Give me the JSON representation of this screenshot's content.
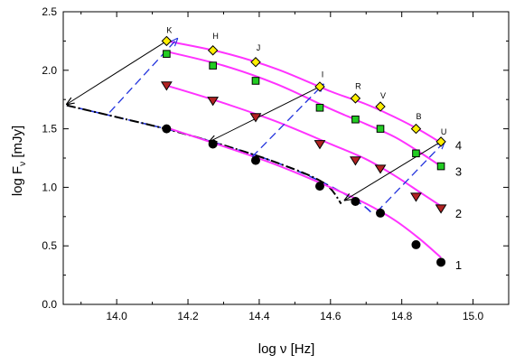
{
  "chart_data": {
    "type": "scatter",
    "title": "",
    "xlabel": "log ν [Hz]",
    "ylabel": "log F",
    "ylabel_sub": "ν",
    "ylabel_unit": " [mJy]",
    "xlim": [
      13.85,
      15.1
    ],
    "ylim": [
      0.0,
      2.5
    ],
    "xticks": [
      14.0,
      14.2,
      14.4,
      14.6,
      14.8,
      15.0
    ],
    "xtick_labels": [
      "14.0",
      "14.2",
      "14.4",
      "14.6",
      "14.8",
      "15.0"
    ],
    "yticks": [
      0.0,
      0.5,
      1.0,
      1.5,
      2.0,
      2.5
    ],
    "ytick_labels": [
      "0.0",
      "0.5",
      "1.0",
      "1.5",
      "2.0",
      "2.5"
    ],
    "grid": false,
    "legend": "none",
    "colors": {
      "curve": "#ff33ff",
      "s1": "#000000",
      "s2": "#b22222",
      "s3": "#22cc22",
      "s4": "#ffee00",
      "black_arrow": "#000000",
      "blue_arrow": "#2233dd",
      "dashdot": "#000000"
    },
    "band_labels": [
      {
        "text": "K",
        "x": 14.14,
        "y": 2.32
      },
      {
        "text": "H",
        "x": 14.27,
        "y": 2.27
      },
      {
        "text": "J",
        "x": 14.39,
        "y": 2.17
      },
      {
        "text": "I",
        "x": 14.57,
        "y": 1.94
      },
      {
        "text": "R",
        "x": 14.67,
        "y": 1.84
      },
      {
        "text": "V",
        "x": 14.74,
        "y": 1.76
      },
      {
        "text": "B",
        "x": 14.84,
        "y": 1.58
      },
      {
        "text": "U",
        "x": 14.91,
        "y": 1.45
      }
    ],
    "series": [
      {
        "name": "1",
        "marker": "circle",
        "x": [
          14.14,
          14.27,
          14.39,
          14.57,
          14.67,
          14.74,
          14.84,
          14.91
        ],
        "y": [
          1.5,
          1.37,
          1.23,
          1.01,
          0.88,
          0.78,
          0.51,
          0.36
        ],
        "curve_x": [
          14.14,
          14.3,
          14.45,
          14.6,
          14.7,
          14.78,
          14.85,
          14.91
        ],
        "curve_y": [
          1.51,
          1.35,
          1.19,
          1.0,
          0.86,
          0.72,
          0.56,
          0.4
        ],
        "label_pos": {
          "x": 14.95,
          "y": 0.34
        }
      },
      {
        "name": "2",
        "marker": "triangle-down",
        "x": [
          14.14,
          14.27,
          14.39,
          14.57,
          14.67,
          14.74,
          14.84,
          14.91
        ],
        "y": [
          1.87,
          1.74,
          1.6,
          1.37,
          1.23,
          1.16,
          0.92,
          0.82
        ],
        "curve_x": [
          14.14,
          14.3,
          14.45,
          14.6,
          14.7,
          14.78,
          14.85,
          14.91
        ],
        "curve_y": [
          1.87,
          1.72,
          1.56,
          1.37,
          1.24,
          1.1,
          0.96,
          0.84
        ],
        "label_pos": {
          "x": 14.95,
          "y": 0.78
        }
      },
      {
        "name": "3",
        "marker": "square",
        "x": [
          14.14,
          14.27,
          14.39,
          14.57,
          14.67,
          14.74,
          14.84,
          14.91
        ],
        "y": [
          2.14,
          2.04,
          1.91,
          1.68,
          1.58,
          1.5,
          1.29,
          1.18
        ],
        "curve_x": [
          14.14,
          14.3,
          14.45,
          14.6,
          14.7,
          14.78,
          14.85,
          14.91
        ],
        "curve_y": [
          2.16,
          2.04,
          1.88,
          1.67,
          1.54,
          1.43,
          1.3,
          1.18
        ],
        "label_pos": {
          "x": 14.95,
          "y": 1.14
        }
      },
      {
        "name": "4",
        "marker": "diamond",
        "x": [
          14.14,
          14.27,
          14.39,
          14.57,
          14.67,
          14.74,
          14.84,
          14.91
        ],
        "y": [
          2.25,
          2.17,
          2.07,
          1.86,
          1.76,
          1.69,
          1.5,
          1.39
        ],
        "curve_x": [
          14.14,
          14.3,
          14.45,
          14.6,
          14.7,
          14.78,
          14.85,
          14.91
        ],
        "curve_y": [
          2.25,
          2.15,
          2.01,
          1.82,
          1.71,
          1.6,
          1.49,
          1.38
        ],
        "label_pos": {
          "x": 14.95,
          "y": 1.36
        }
      }
    ],
    "dashdot_line": {
      "x": [
        13.86,
        14.0,
        14.15,
        14.3,
        14.45,
        14.58,
        14.63
      ],
      "y": [
        1.7,
        1.6,
        1.49,
        1.36,
        1.21,
        1.04,
        0.86
      ]
    },
    "blue_dash_line": {
      "x": [
        13.86,
        14.0,
        14.15,
        14.3,
        14.45,
        14.58,
        14.68,
        14.72
      ],
      "y": [
        1.7,
        1.6,
        1.49,
        1.36,
        1.21,
        1.04,
        0.87,
        0.77
      ]
    },
    "black_arrows": [
      {
        "from": [
          14.14,
          2.25
        ],
        "to": [
          13.86,
          1.71
        ]
      },
      {
        "from": [
          14.57,
          1.86
        ],
        "to": [
          14.26,
          1.39
        ]
      },
      {
        "from": [
          14.91,
          1.39
        ],
        "to": [
          14.64,
          0.89
        ]
      }
    ],
    "blue_arrows": [
      {
        "from": [
          13.98,
          1.64
        ],
        "to": [
          14.17,
          2.27
        ]
      },
      {
        "from": [
          14.38,
          1.26
        ],
        "to": [
          14.58,
          1.88
        ]
      },
      {
        "from": [
          14.73,
          0.79
        ],
        "to": [
          14.92,
          1.39
        ]
      }
    ]
  }
}
